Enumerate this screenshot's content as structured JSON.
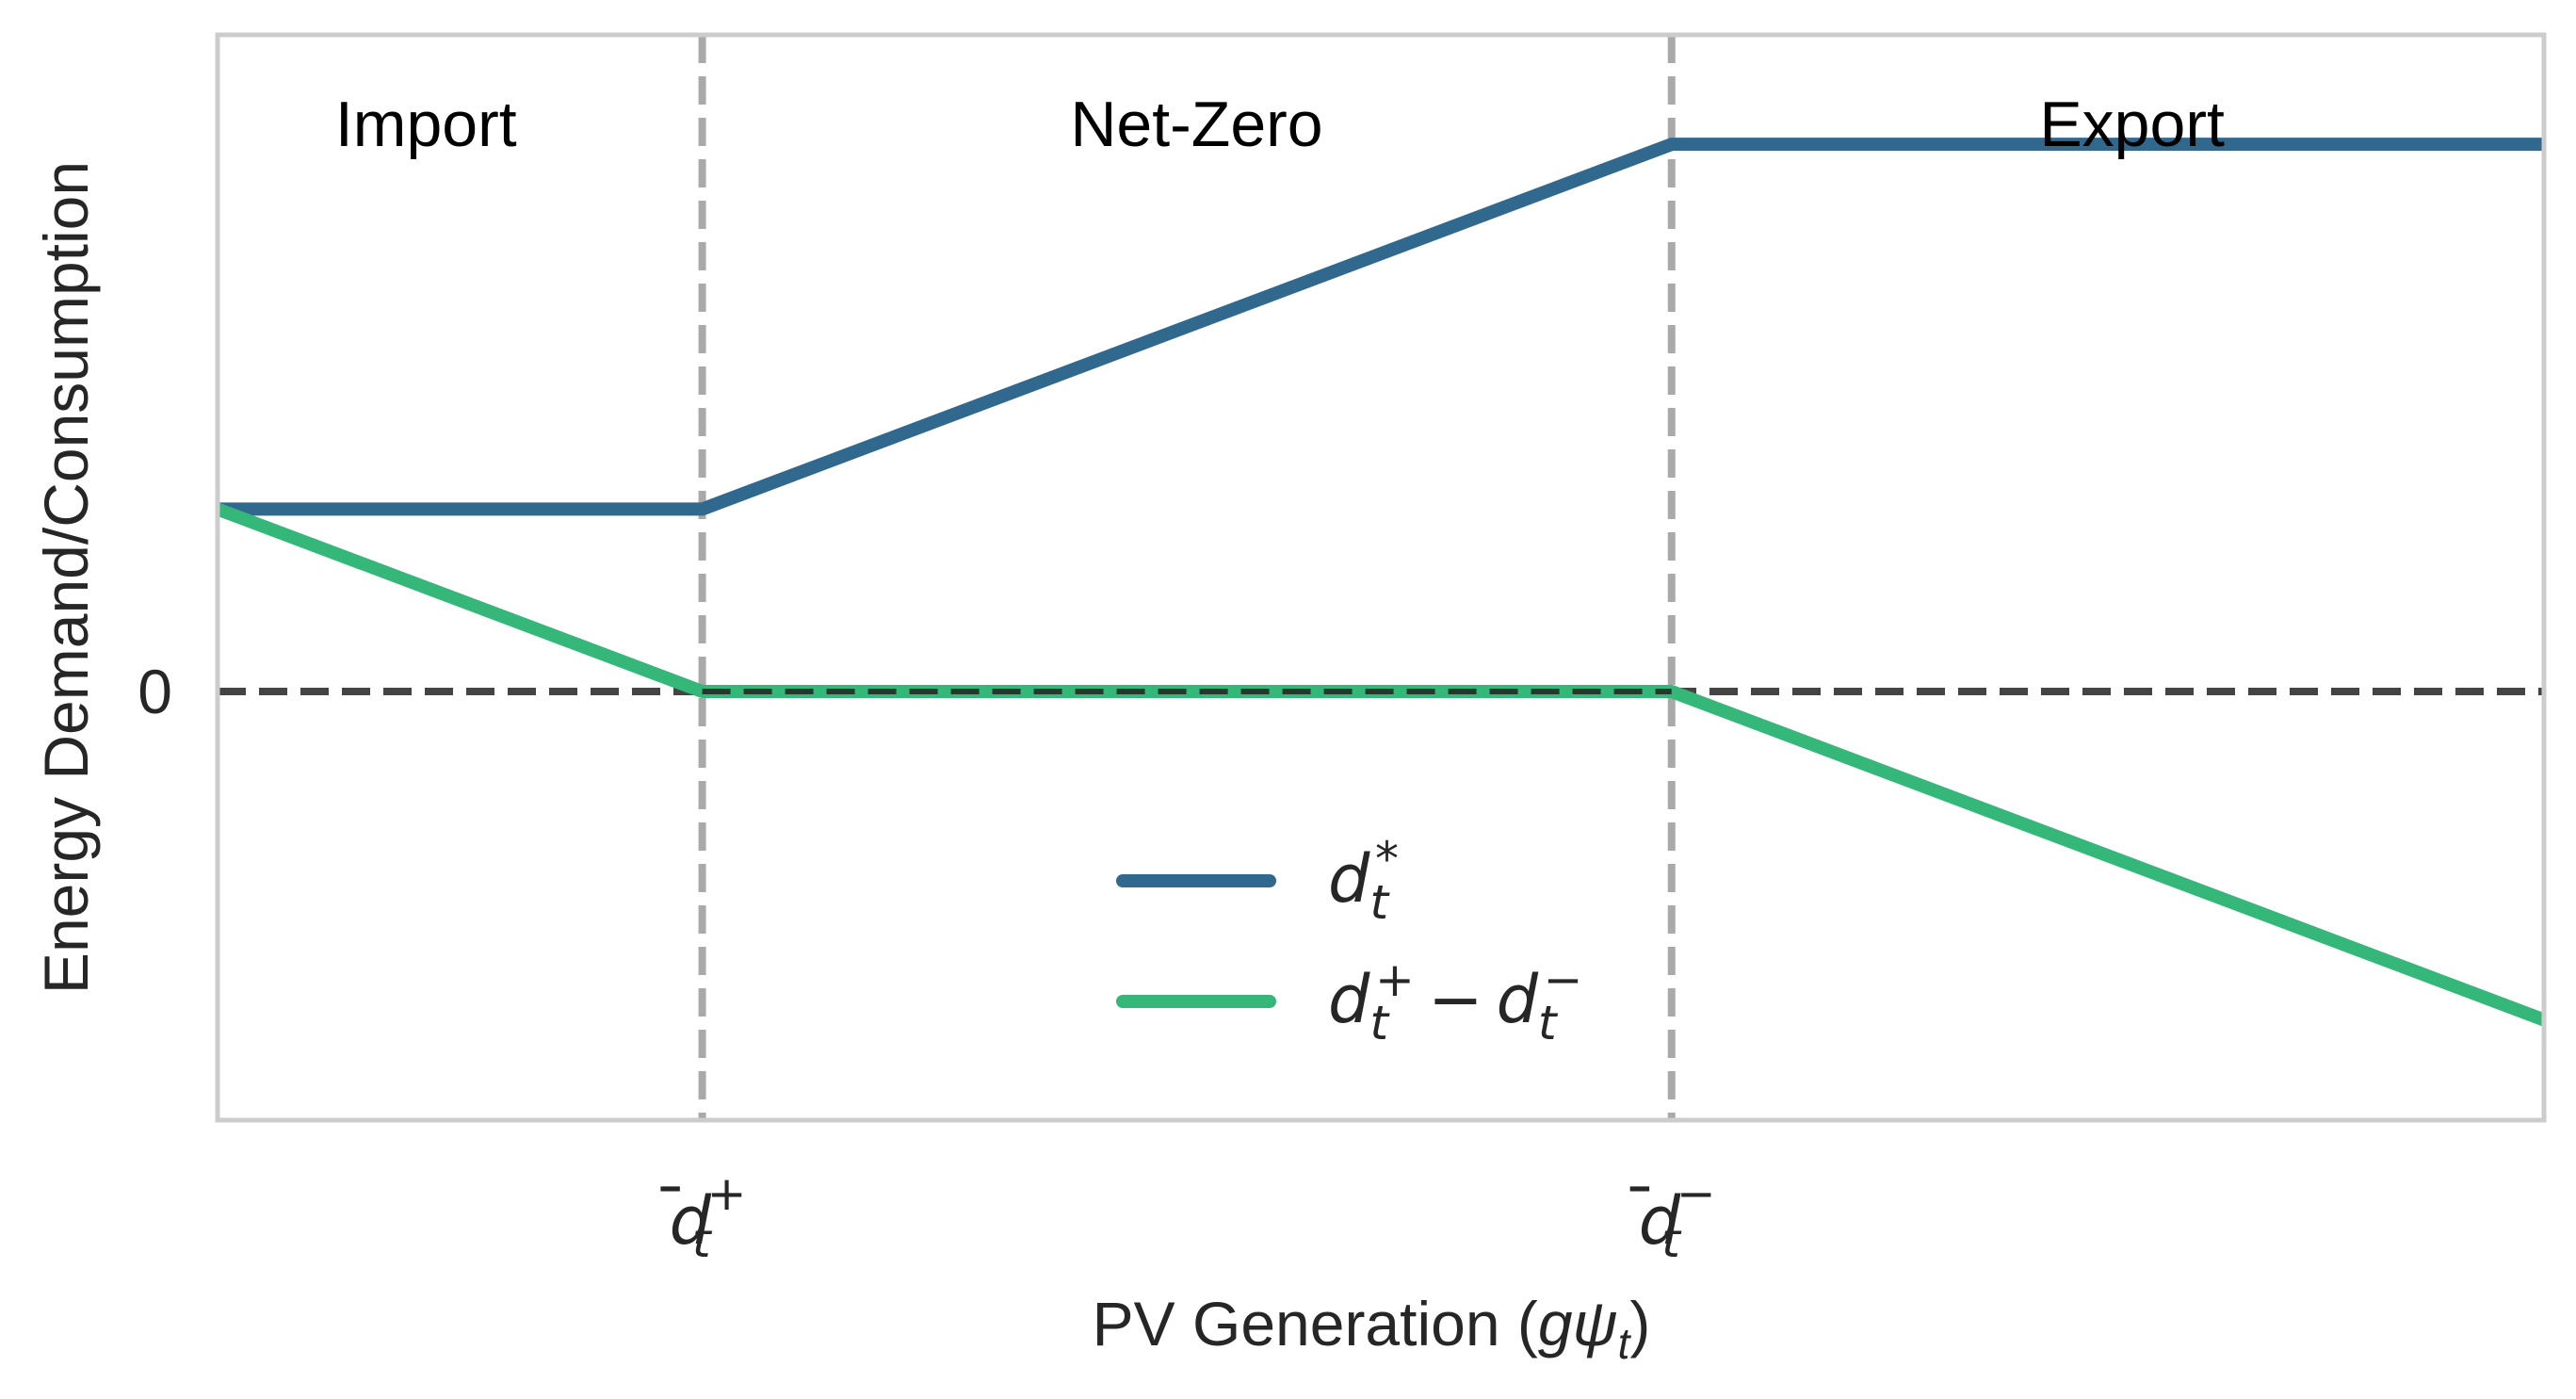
{
  "chart_data": {
    "type": "line",
    "title": "",
    "xlabel": "PV Generation (gψ_t)",
    "xlabel_parts": {
      "prefix": "PV Generation (",
      "g": "g",
      "psi": "ψ",
      "sub": "t",
      "suffix": ")"
    },
    "ylabel": "Energy Demand/Consumption",
    "xlim": [
      0,
      4.8
    ],
    "ylim": [
      -2.35,
      3.6
    ],
    "grid": false,
    "yticks": [
      {
        "value": 0,
        "label": "0"
      }
    ],
    "xticks": [
      {
        "value": 1,
        "base": "d",
        "bar": "̄",
        "sub": "t",
        "sup": "+"
      },
      {
        "value": 3,
        "base": "d",
        "bar": "̄",
        "sub": "t",
        "sup": "−"
      }
    ],
    "thresholds": [
      1,
      3
    ],
    "zero_line": 0,
    "regions": [
      {
        "label": "Import",
        "x": 0.43
      },
      {
        "label": "Net-Zero",
        "x": 2.02
      },
      {
        "label": "Export",
        "x": 3.95
      }
    ],
    "series": [
      {
        "name": "d_t^*",
        "legend": {
          "base": "d",
          "sub": "t",
          "sup": "*"
        },
        "color": "#31688e",
        "x": [
          0,
          1,
          3,
          4.8
        ],
        "y": [
          1,
          1,
          3,
          3
        ]
      },
      {
        "name": "d_t^+ − d_t^−",
        "legend": {
          "base1": "d",
          "sub1": "t",
          "sup1": "+",
          "op": "−",
          "base2": "d",
          "sub2": "t",
          "sup2": "−"
        },
        "color": "#35b779",
        "x": [
          0,
          1,
          3,
          4.8
        ],
        "y": [
          1,
          0,
          0,
          -1.8
        ]
      }
    ],
    "legend_position": "lower-center",
    "colors": {
      "threshold": "#a9a9a9",
      "zero": "#444444",
      "frame": "#cccccc"
    }
  }
}
